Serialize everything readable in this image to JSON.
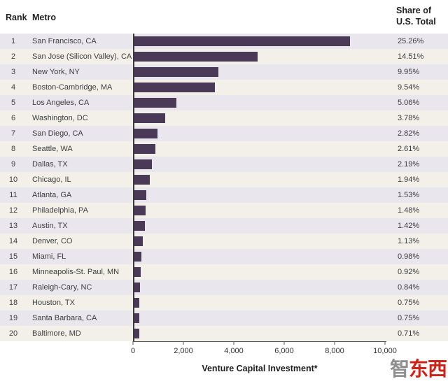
{
  "header": {
    "rank": "Rank",
    "metro": "Metro",
    "share_line1": "Share of",
    "share_line2": "U.S. Total"
  },
  "chart_data": {
    "type": "bar",
    "orientation": "horizontal",
    "title": "",
    "xlabel": "Venture Capital Investment*",
    "ylabel": "",
    "xlim": [
      0,
      10000
    ],
    "xtick_labels": [
      "0",
      "2,000",
      "4,000",
      "6,000",
      "8,000",
      "10,000"
    ],
    "xtick_values": [
      0,
      2000,
      4000,
      6000,
      8000,
      10000
    ],
    "grid": false,
    "legend": false,
    "rows": [
      {
        "rank": 1,
        "metro": "San Francisco, CA",
        "value": 8600,
        "share": "25.26%"
      },
      {
        "rank": 2,
        "metro": "San Jose (Silicon Valley), CA",
        "value": 4940,
        "share": "14.51%"
      },
      {
        "rank": 3,
        "metro": "New York, NY",
        "value": 3390,
        "share": "9.95%"
      },
      {
        "rank": 4,
        "metro": "Boston-Cambridge, MA",
        "value": 3250,
        "share": "9.54%"
      },
      {
        "rank": 5,
        "metro": "Los Angeles, CA",
        "value": 1720,
        "share": "5.06%"
      },
      {
        "rank": 6,
        "metro": "Washington, DC",
        "value": 1290,
        "share": "3.78%"
      },
      {
        "rank": 7,
        "metro": "San Diego, CA",
        "value": 960,
        "share": "2.82%"
      },
      {
        "rank": 8,
        "metro": "Seattle, WA",
        "value": 890,
        "share": "2.61%"
      },
      {
        "rank": 9,
        "metro": "Dallas, TX",
        "value": 750,
        "share": "2.19%"
      },
      {
        "rank": 10,
        "metro": "Chicago, IL",
        "value": 660,
        "share": "1.94%"
      },
      {
        "rank": 11,
        "metro": "Atlanta, GA",
        "value": 520,
        "share": "1.53%"
      },
      {
        "rank": 12,
        "metro": "Philadelphia, PA",
        "value": 505,
        "share": "1.48%"
      },
      {
        "rank": 13,
        "metro": "Austin, TX",
        "value": 485,
        "share": "1.42%"
      },
      {
        "rank": 14,
        "metro": "Denver, CO",
        "value": 385,
        "share": "1.13%"
      },
      {
        "rank": 15,
        "metro": "Miami, FL",
        "value": 335,
        "share": "0.98%"
      },
      {
        "rank": 16,
        "metro": "Minneapolis-St. Paul, MN",
        "value": 315,
        "share": "0.92%"
      },
      {
        "rank": 17,
        "metro": "Raleigh-Cary, NC",
        "value": 285,
        "share": "0.84%"
      },
      {
        "rank": 18,
        "metro": "Houston, TX",
        "value": 255,
        "share": "0.75%"
      },
      {
        "rank": 19,
        "metro": "Santa Barbara, CA",
        "value": 255,
        "share": "0.75%"
      },
      {
        "rank": 20,
        "metro": "Baltimore, MD",
        "value": 240,
        "share": "0.71%"
      }
    ]
  },
  "watermark": {
    "gray_char": "智",
    "red_chars": "东西"
  },
  "colors": {
    "bar": "#4a3957",
    "stripe_odd": "#e9e6ee",
    "stripe_even": "#f2f0e9"
  }
}
